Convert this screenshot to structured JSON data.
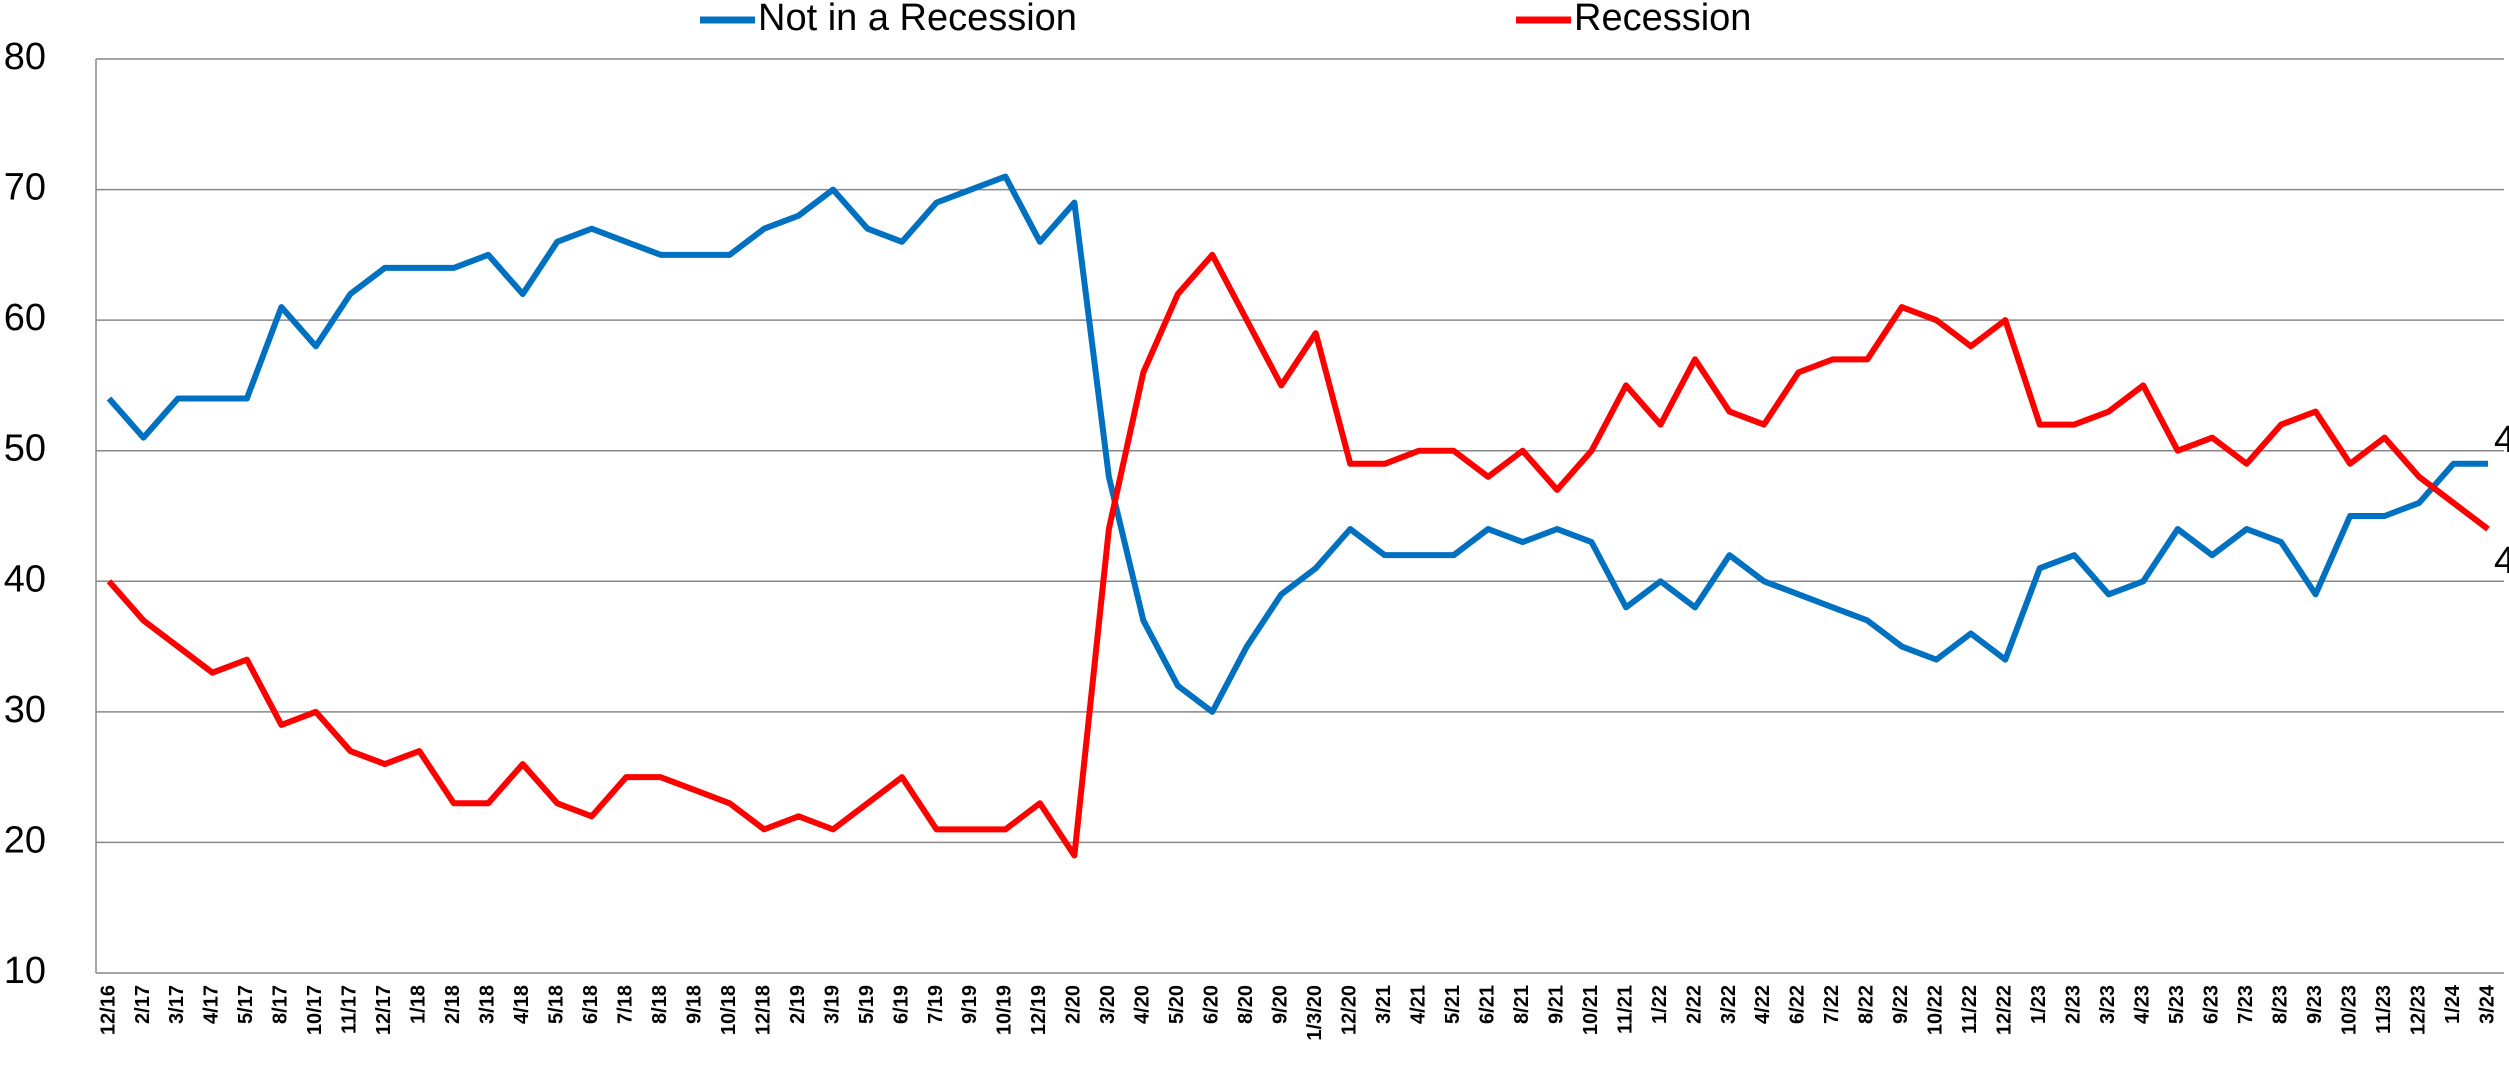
{
  "chart_data": {
    "type": "line",
    "categories": [
      "12/16",
      "2/17",
      "3/17",
      "4/17",
      "5/17",
      "8/17",
      "10/17",
      "11/17",
      "12/17",
      "1/18",
      "2/18",
      "3/18",
      "4/18",
      "5/18",
      "6/18",
      "7/18",
      "8/18",
      "9/18",
      "10/18",
      "12/18",
      "2/19",
      "3/19",
      "5/19",
      "6/19",
      "7/19",
      "9/19",
      "10/19",
      "12/19",
      "2/20",
      "3/20",
      "4/20",
      "5/20",
      "6/20",
      "8/20",
      "9/20",
      "1/3/20",
      "12/20",
      "3/21",
      "4/21",
      "5/21",
      "6/21",
      "8/21",
      "9/21",
      "10/21",
      "11/21",
      "1/22",
      "2/22",
      "3/22",
      "4/22",
      "6/22",
      "7/22",
      "8/22",
      "9/22",
      "10/22",
      "11/22",
      "12/22",
      "1/23",
      "2/23",
      "3/23",
      "4/23",
      "5/23",
      "6/23",
      "7/23",
      "8/23",
      "9/23",
      "10/23",
      "11/23",
      "12/23",
      "1/24",
      "3/24"
    ],
    "series": [
      {
        "name": "Not in a Recession",
        "color": "#0070c0",
        "values": [
          54,
          51,
          54,
          54,
          54,
          61,
          58,
          62,
          64,
          64,
          64,
          65,
          62,
          66,
          67,
          66,
          65,
          65,
          65,
          67,
          68,
          70,
          67,
          66,
          69,
          70,
          71,
          66,
          69,
          48,
          37,
          32,
          30,
          35,
          39,
          41,
          44,
          42,
          42,
          42,
          44,
          43,
          44,
          43,
          38,
          40,
          38,
          42,
          40,
          39,
          38,
          37,
          35,
          34,
          36,
          34,
          41,
          42,
          39,
          40,
          44,
          42,
          44,
          43,
          39,
          45,
          45,
          46,
          49,
          49
        ]
      },
      {
        "name": "Recession",
        "color": "#ff0000",
        "values": [
          40,
          37,
          35,
          33,
          34,
          29,
          30,
          27,
          26,
          27,
          23,
          23,
          26,
          23,
          22,
          25,
          25,
          24,
          23,
          21,
          22,
          21,
          23,
          25,
          21,
          21,
          21,
          23,
          19,
          44,
          56,
          62,
          65,
          60,
          55,
          59,
          49,
          49,
          50,
          50,
          48,
          50,
          47,
          50,
          55,
          52,
          57,
          53,
          52,
          56,
          57,
          57,
          61,
          60,
          58,
          60,
          52,
          52,
          53,
          55,
          50,
          51,
          49,
          52,
          53,
          49,
          51,
          48,
          46,
          44
        ]
      }
    ],
    "ylim": [
      10,
      80
    ],
    "yticks": [
      10,
      20,
      30,
      40,
      50,
      60,
      70,
      80
    ],
    "grid": true
  }
}
